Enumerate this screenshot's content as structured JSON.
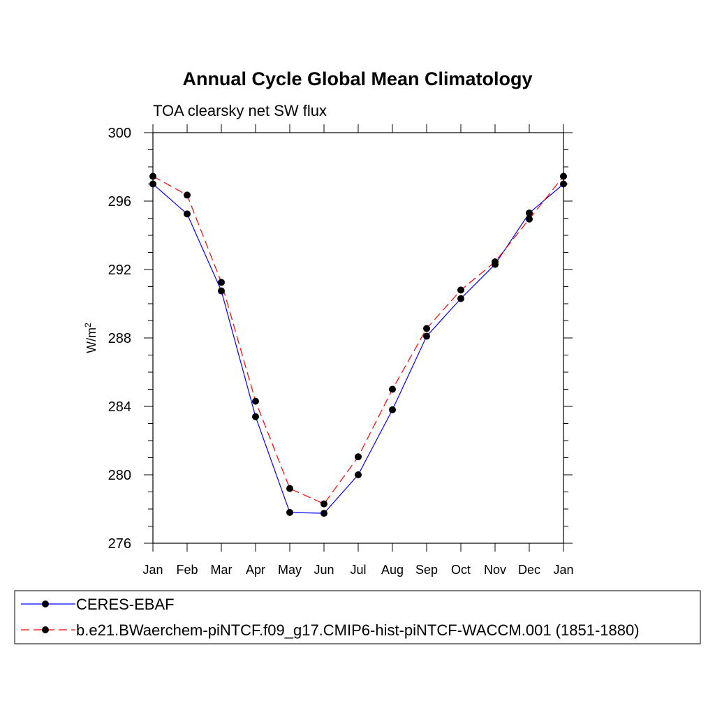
{
  "chart_data": {
    "type": "line",
    "title": "Annual Cycle Global Mean Climatology",
    "subtitle": "TOA clearsky net SW flux",
    "ylabel": "W/m",
    "ylabel_superscript": "2",
    "ylim": [
      276,
      300
    ],
    "yticks": [
      "276",
      "280",
      "284",
      "288",
      "292",
      "296",
      "300"
    ],
    "ytick_values": [
      276,
      280,
      284,
      288,
      292,
      296,
      300
    ],
    "y_minor_step": 1,
    "categories": [
      "Jan",
      "Feb",
      "Mar",
      "Apr",
      "May",
      "Jun",
      "Jul",
      "Aug",
      "Sep",
      "Oct",
      "Nov",
      "Dec",
      "Jan"
    ],
    "series": [
      {
        "name": "CERES-EBAF",
        "color": "#0000ff",
        "dash": "solid",
        "values": [
          297.0,
          295.25,
          290.75,
          283.4,
          277.8,
          277.75,
          280.0,
          283.8,
          288.1,
          290.3,
          292.3,
          295.3,
          297.0
        ]
      },
      {
        "name": "b.e21.BWaerchem-piNTCF.f09_g17.CMIP6-hist-piNTCF-WACCM.001 (1851-1880)",
        "color": "#ff0000",
        "dash": "dashed",
        "values": [
          297.45,
          296.35,
          291.25,
          284.3,
          279.2,
          278.3,
          281.05,
          285.0,
          288.55,
          290.8,
          292.45,
          294.95,
          297.45
        ]
      }
    ],
    "legend_position": "bottom",
    "grid": false
  }
}
